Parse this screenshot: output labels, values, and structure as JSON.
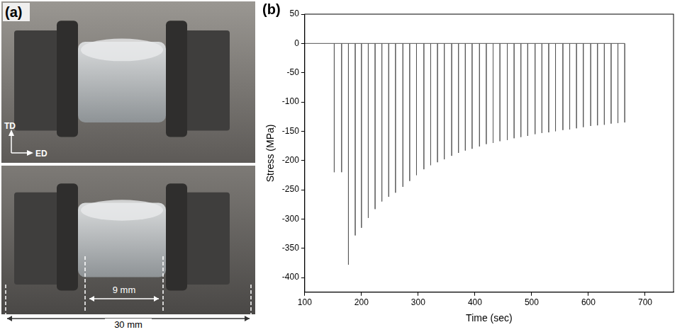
{
  "panel_a": {
    "label": "(a)",
    "directions": [
      "TD",
      "ED"
    ],
    "dimensions": [
      "9 mm",
      "30 mm"
    ]
  },
  "chart_data": {
    "type": "line",
    "title": "(b)",
    "x_label": "Time (sec)",
    "y_label": "Stress (MPa)",
    "color": "#555555",
    "grid": false,
    "xlim": [
      100,
      750
    ],
    "xticks": [
      100,
      200,
      300,
      400,
      500,
      600,
      700
    ],
    "ylim": [
      -425,
      50
    ],
    "yticks": [
      -400,
      -350,
      -300,
      -250,
      -200,
      -150,
      -100,
      -50,
      0,
      50
    ],
    "x": [
      100,
      152,
      152,
      152,
      165,
      165,
      165,
      177,
      177,
      177,
      189,
      189,
      189,
      200,
      200,
      200,
      212,
      212,
      212,
      224,
      224,
      224,
      236,
      236,
      236,
      248,
      248,
      248,
      260,
      260,
      260,
      273,
      273,
      273,
      285,
      285,
      285,
      297,
      297,
      297,
      310,
      310,
      310,
      322,
      322,
      322,
      334,
      334,
      334,
      346,
      346,
      346,
      359,
      359,
      359,
      371,
      371,
      371,
      383,
      383,
      383,
      395,
      395,
      395,
      408,
      408,
      408,
      420,
      420,
      420,
      432,
      432,
      432,
      444,
      444,
      444,
      457,
      457,
      457,
      469,
      469,
      469,
      481,
      481,
      481,
      493,
      493,
      493,
      506,
      506,
      506,
      518,
      518,
      518,
      530,
      530,
      530,
      542,
      542,
      542,
      555,
      555,
      555,
      567,
      567,
      567,
      579,
      579,
      579,
      591,
      591,
      591,
      604,
      604,
      604,
      616,
      616,
      616,
      628,
      628,
      628,
      640,
      640,
      640,
      652,
      652,
      652,
      664,
      664,
      664
    ],
    "values": [
      0,
      0,
      -220,
      0,
      0,
      -220,
      0,
      0,
      -378,
      0,
      0,
      -328,
      0,
      0,
      -315,
      0,
      0,
      -298,
      0,
      0,
      -283,
      0,
      0,
      -270,
      0,
      0,
      -262,
      0,
      0,
      -255,
      0,
      0,
      -245,
      0,
      0,
      -235,
      0,
      0,
      -225,
      0,
      0,
      -215,
      0,
      0,
      -208,
      0,
      0,
      -203,
      0,
      0,
      -198,
      0,
      0,
      -192,
      0,
      0,
      -187,
      0,
      0,
      -183,
      0,
      0,
      -180,
      0,
      0,
      -176,
      0,
      0,
      -172,
      0,
      0,
      -170,
      0,
      0,
      -167,
      0,
      0,
      -165,
      0,
      0,
      -162,
      0,
      0,
      -160,
      0,
      0,
      -158,
      0,
      0,
      -155,
      0,
      0,
      -153,
      0,
      0,
      -152,
      0,
      0,
      -150,
      0,
      0,
      -148,
      0,
      0,
      -147,
      0,
      0,
      -145,
      0,
      0,
      -143,
      0,
      0,
      -141,
      0,
      0,
      -140,
      0,
      0,
      -139,
      0,
      0,
      -137,
      0,
      0,
      -136,
      0,
      0,
      -135,
      0
    ]
  }
}
